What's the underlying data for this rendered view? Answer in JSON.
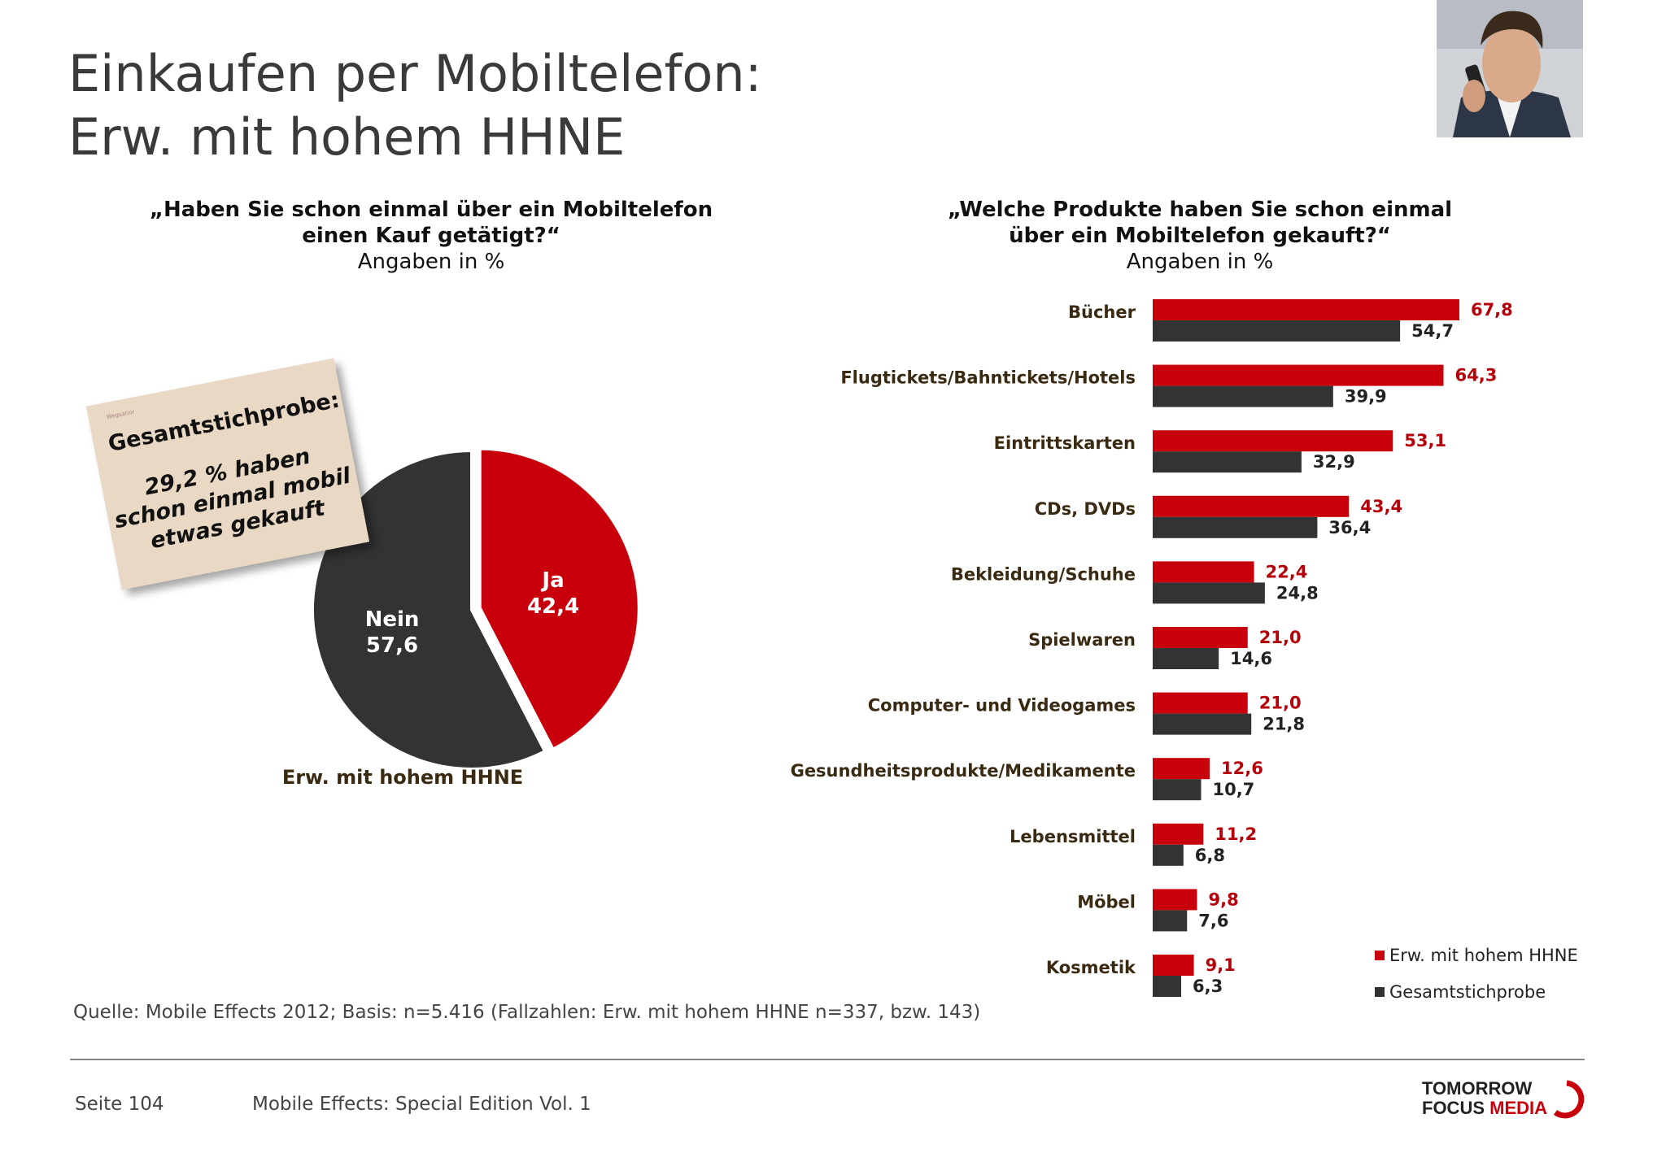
{
  "title_line1": "Einkaufen per Mobiltelefon:",
  "title_line2": "Erw. mit hohem HHNE",
  "left_question": {
    "line1": "„Haben Sie schon einmal über ein Mobiltelefon",
    "line2": "einen Kauf getätigt?“",
    "unit": "Angaben in %"
  },
  "right_question": {
    "line1": "„Welche Produkte haben Sie schon einmal",
    "line2": "über ein Mobiltelefon gekauft?“",
    "unit": "Angaben in %"
  },
  "note": {
    "small": "Wegsatior",
    "heading": "Gesamtstichprobe:",
    "line1": "29,2 % haben",
    "line2": "schon einmal mobil",
    "line3": "etwas gekauft"
  },
  "colors": {
    "red": "#c8000c",
    "dark": "#333333",
    "label_red": "#b5000a",
    "label_dark": "#222222",
    "category": "#3b2a12"
  },
  "chart_data": [
    {
      "type": "pie",
      "caption": "Erw. mit hohem HHNE",
      "slices": [
        {
          "label": "Ja",
          "value": 42.4,
          "display": "42,4",
          "color": "#c8000c"
        },
        {
          "label": "Nein",
          "value": 57.6,
          "display": "57,6",
          "color": "#333333"
        }
      ]
    },
    {
      "type": "bar",
      "orientation": "horizontal",
      "categories": [
        "Bücher",
        "Flugtickets/Bahntickets/Hotels",
        "Eintrittskarten",
        "CDs, DVDs",
        "Bekleidung/Schuhe",
        "Spielwaren",
        "Computer- und Videogames",
        "Gesundheitsprodukte/Medikamente",
        "Lebensmittel",
        "Möbel",
        "Kosmetik"
      ],
      "series": [
        {
          "name": "Erw. mit hohem HHNE",
          "color": "#c8000c",
          "values": [
            67.8,
            64.3,
            53.1,
            43.4,
            22.4,
            21.0,
            21.0,
            12.6,
            11.2,
            9.8,
            9.1
          ],
          "labels": [
            "67,8",
            "64,3",
            "53,1",
            "43,4",
            "22,4",
            "21,0",
            "21,0",
            "12,6",
            "11,2",
            "9,8",
            "9,1"
          ]
        },
        {
          "name": "Gesamtstichprobe",
          "color": "#333333",
          "values": [
            54.7,
            39.9,
            32.9,
            36.4,
            24.8,
            14.6,
            21.8,
            10.7,
            6.8,
            7.6,
            6.3
          ],
          "labels": [
            "54,7",
            "39,9",
            "32,9",
            "36,4",
            "24,8",
            "14,6",
            "21,8",
            "10,7",
            "6,8",
            "7,6",
            "6,3"
          ]
        }
      ],
      "legend_position": "bottom-right",
      "grid": false
    }
  ],
  "legend": {
    "item1": "Erw. mit hohem HHNE",
    "item2": "Gesamtstichprobe"
  },
  "source": "Quelle: Mobile Effects 2012; Basis: n=5.416 (Fallzahlen: Erw. mit hohem HHNE n=337, bzw. 143)",
  "footer": {
    "page": "Seite 104",
    "edition": "Mobile Effects: Special Edition Vol. 1",
    "logo_line1": "TOMORROW",
    "logo_line2a": "FOCUS ",
    "logo_line2b": "MEDIA"
  }
}
